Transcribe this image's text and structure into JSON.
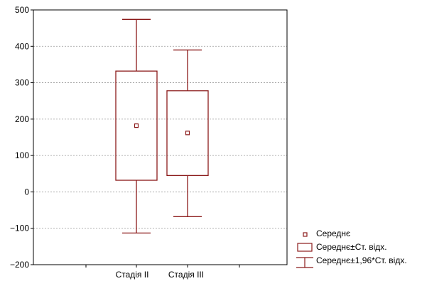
{
  "chart_data": {
    "type": "boxplot",
    "title": "",
    "xlabel": "",
    "ylabel": "",
    "ylim": [
      -200,
      500
    ],
    "yticks": [
      -200,
      -100,
      0,
      100,
      200,
      300,
      400,
      500
    ],
    "yticks_labels": [
      "−200",
      "−100",
      "0",
      "100",
      "200",
      "300",
      "400",
      "500"
    ],
    "grid": "horizontal dotted",
    "legend_position": "bottom-right",
    "color": "#8b1a1a",
    "categories": [
      "Стадія II",
      "Стадія III"
    ],
    "series": [
      {
        "category": "Стадія II",
        "mean": 182,
        "box_low": 32,
        "box_high": 332,
        "whisker_low": -113,
        "whisker_high": 474
      },
      {
        "category": "Стадія III",
        "mean": 162,
        "box_low": 45,
        "box_high": 278,
        "whisker_low": -68,
        "whisker_high": 390
      }
    ],
    "legend": [
      {
        "symbol": "mean-marker",
        "label": "Середнє"
      },
      {
        "symbol": "box",
        "label": "Середнє±Ст. відх."
      },
      {
        "symbol": "whisker",
        "label": "Середнє±1,96*Ст. відх."
      }
    ]
  }
}
